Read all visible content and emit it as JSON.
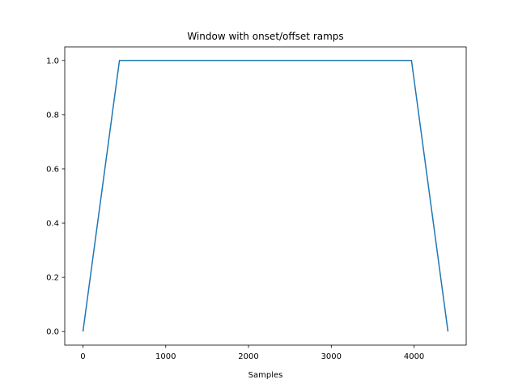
{
  "chart_data": {
    "type": "line",
    "title": "Window with onset/offset ramps",
    "xlabel": "Samples",
    "ylabel": "",
    "xlim": [
      -220,
      4630
    ],
    "ylim": [
      -0.05,
      1.05
    ],
    "xticks": [
      0,
      1000,
      2000,
      3000,
      4000
    ],
    "xtick_labels": [
      "0",
      "1000",
      "2000",
      "3000",
      "4000"
    ],
    "yticks": [
      0.0,
      0.2,
      0.4,
      0.6,
      0.8,
      1.0
    ],
    "ytick_labels": [
      "0.0",
      "0.2",
      "0.4",
      "0.6",
      "0.8",
      "1.0"
    ],
    "grid": false,
    "series": [
      {
        "color": "#1f77b4",
        "x": [
          0,
          441,
          3969,
          4410
        ],
        "y": [
          0.0,
          1.0,
          1.0,
          0.0
        ]
      }
    ]
  }
}
